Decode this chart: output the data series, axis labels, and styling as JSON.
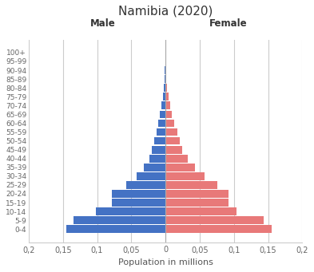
{
  "title": "Namibia (2020)",
  "xlabel": "Population in millions",
  "male_label": "Male",
  "female_label": "Female",
  "age_groups": [
    "0-4",
    "5-9",
    "10-14",
    "15-19",
    "20-24",
    "25-29",
    "30-34",
    "35-39",
    "40-44",
    "45-49",
    "50-54",
    "55-59",
    "60-64",
    "65-69",
    "70-74",
    "75-79",
    "80-84",
    "85-89",
    "90-94",
    "95-99",
    "100+"
  ],
  "male": [
    0.145,
    0.135,
    0.102,
    0.079,
    0.078,
    0.057,
    0.042,
    0.032,
    0.0235,
    0.0195,
    0.016,
    0.013,
    0.0105,
    0.008,
    0.0055,
    0.0035,
    0.002,
    0.0012,
    0.0008,
    0.0004,
    0.0002
  ],
  "female": [
    0.155,
    0.143,
    0.104,
    0.0925,
    0.092,
    0.076,
    0.057,
    0.043,
    0.033,
    0.024,
    0.0205,
    0.0175,
    0.013,
    0.0095,
    0.0065,
    0.004,
    0.0025,
    0.0015,
    0.001,
    0.0005,
    0.0003
  ],
  "male_color": "#4472C4",
  "female_color": "#E87979",
  "xlim": 0.2,
  "grid_color": "#CCCCCC",
  "background_color": "#FFFFFF",
  "tick_vals": [
    -0.2,
    -0.15,
    -0.1,
    -0.05,
    0.0,
    0.05,
    0.1,
    0.15,
    0.2
  ],
  "tick_labels": [
    "0,2",
    "0,15",
    "0,1",
    "0,05",
    "0",
    "0,05",
    "0,1",
    "0,15",
    "0,2"
  ]
}
